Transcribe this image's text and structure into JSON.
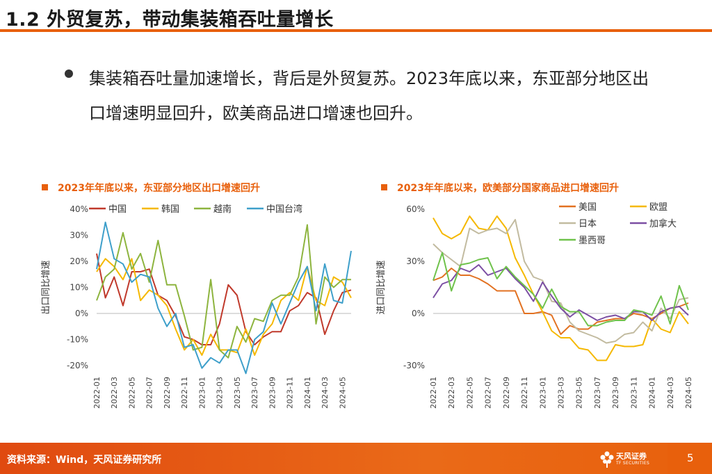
{
  "header": {
    "title": "1.2 外贸复苏，带动集装箱吞吐量增长"
  },
  "body": {
    "bullet_text": "集装箱吞吐量加速增长，背后是外贸复苏。2023年底以来，东亚部分地区出口增速明显回升，欧美商品进口增速也回升。"
  },
  "footer": {
    "source": "资料来源：Wind，天风证券研究所",
    "logo_cn": "天风证券",
    "logo_en": "TF SECURITIES",
    "page_number": "5"
  },
  "colors": {
    "accent": "#e8600c"
  },
  "chart_data": [
    {
      "type": "line",
      "title": "2023年年底以来，东亚部分地区出口增速回升",
      "ylabel": "出口同比增速",
      "ylim": [
        -0.2,
        0.4
      ],
      "yticks": [
        -0.2,
        -0.1,
        0,
        0.1,
        0.2,
        0.3,
        0.4
      ],
      "ytick_labels": [
        "-20%",
        "-10%",
        "0%",
        "10%",
        "20%",
        "30%",
        "40%"
      ],
      "categories": [
        "2022-01",
        "2022-02",
        "2022-03",
        "2022-04",
        "2022-05",
        "2022-06",
        "2022-07",
        "2022-08",
        "2022-09",
        "2022-10",
        "2022-11",
        "2022-12",
        "2023-01",
        "2023-02",
        "2023-03",
        "2023-04",
        "2023-05",
        "2023-06",
        "2023-07",
        "2023-08",
        "2023-09",
        "2023-10",
        "2023-11",
        "2023-12",
        "2024-01",
        "2024-02",
        "2024-03",
        "2024-04",
        "2024-05",
        "2024-06"
      ],
      "xtick_labels": [
        "2022-01",
        "2022-03",
        "2022-05",
        "2022-07",
        "2022-09",
        "2022-11",
        "2023-01",
        "2023-03",
        "2023-05",
        "2023-07",
        "2023-09",
        "2023-11",
        "2024-01",
        "2024-03",
        "2024-05"
      ],
      "series": [
        {
          "name": "中国",
          "color": "#c0392b",
          "values": [
            0.23,
            0.06,
            0.14,
            0.03,
            0.16,
            0.16,
            0.17,
            0.07,
            0.05,
            -0.01,
            -0.09,
            -0.1,
            -0.12,
            -0.12,
            -0.04,
            0.11,
            0.07,
            -0.07,
            -0.12,
            -0.09,
            -0.07,
            -0.07,
            0.01,
            0.03,
            0.08,
            0.06,
            -0.08,
            0.01,
            0.08,
            0.09
          ]
        },
        {
          "name": "韩国",
          "color": "#f5b800",
          "values": [
            0.16,
            0.21,
            0.18,
            0.13,
            0.21,
            0.05,
            0.09,
            0.07,
            0.03,
            -0.06,
            -0.14,
            -0.1,
            -0.16,
            -0.08,
            -0.14,
            -0.14,
            -0.15,
            -0.06,
            -0.16,
            -0.08,
            -0.04,
            0.05,
            0.08,
            0.05,
            0.18,
            0.05,
            0.03,
            0.14,
            0.12,
            0.06
          ]
        },
        {
          "name": "越南",
          "color": "#8db43e",
          "values": [
            0.05,
            0.14,
            0.17,
            0.31,
            0.17,
            0.23,
            0.12,
            0.28,
            0.11,
            0.11,
            -0.01,
            -0.14,
            -0.13,
            0.13,
            -0.14,
            -0.17,
            -0.05,
            -0.11,
            -0.02,
            -0.03,
            0.05,
            0.07,
            0.07,
            0.14,
            0.34,
            -0.04,
            0.14,
            0.1,
            0.13,
            0.13
          ]
        },
        {
          "name": "中国台湾",
          "color": "#3d9fca",
          "values": [
            0.17,
            0.35,
            0.21,
            0.19,
            0.12,
            0.15,
            0.14,
            0.02,
            -0.05,
            0.0,
            -0.13,
            -0.12,
            -0.21,
            -0.17,
            -0.19,
            -0.14,
            -0.14,
            -0.23,
            -0.1,
            -0.07,
            0.04,
            -0.04,
            0.04,
            0.12,
            0.18,
            0.01,
            0.19,
            0.05,
            0.04,
            0.24
          ]
        }
      ]
    },
    {
      "type": "line",
      "title": "2023年年底以来，欧美部分国家商品进口增速回升",
      "ylabel": "进口同比增速",
      "ylim": [
        -0.3,
        0.6
      ],
      "yticks": [
        -0.3,
        0,
        0.3,
        0.6
      ],
      "ytick_labels": [
        "-30%",
        "0%",
        "30%",
        "60%"
      ],
      "categories": [
        "2022-01",
        "2022-02",
        "2022-03",
        "2022-04",
        "2022-05",
        "2022-06",
        "2022-07",
        "2022-08",
        "2022-09",
        "2022-10",
        "2022-11",
        "2022-12",
        "2023-01",
        "2023-02",
        "2023-03",
        "2023-04",
        "2023-05",
        "2023-06",
        "2023-07",
        "2023-08",
        "2023-09",
        "2023-10",
        "2023-11",
        "2023-12",
        "2024-01",
        "2024-02",
        "2024-03",
        "2024-04",
        "2024-05"
      ],
      "xtick_labels": [
        "2022-01",
        "2022-03",
        "2022-05",
        "2022-07",
        "2022-09",
        "2022-11",
        "2023-01",
        "2023-03",
        "2023-05",
        "2023-07",
        "2023-09",
        "2023-11",
        "2024-01",
        "2024-03",
        "2024-05"
      ],
      "series": [
        {
          "name": "美国",
          "color": "#e27121",
          "values": [
            0.19,
            0.21,
            0.26,
            0.22,
            0.22,
            0.2,
            0.17,
            0.13,
            0.13,
            0.13,
            0.0,
            0.0,
            0.01,
            -0.01,
            -0.12,
            -0.07,
            -0.09,
            -0.09,
            -0.05,
            -0.04,
            -0.03,
            -0.03,
            0.0,
            -0.01,
            -0.03,
            0.0,
            0.03,
            0.04,
            0.06
          ]
        },
        {
          "name": "欧盟",
          "color": "#f5b800",
          "values": [
            0.55,
            0.46,
            0.43,
            0.46,
            0.56,
            0.49,
            0.48,
            0.56,
            0.49,
            0.32,
            0.22,
            0.11,
            0.01,
            -0.1,
            -0.14,
            -0.14,
            -0.2,
            -0.21,
            -0.27,
            -0.27,
            -0.18,
            -0.19,
            -0.19,
            -0.18,
            -0.03,
            -0.09,
            -0.11,
            0.01,
            -0.06
          ]
        },
        {
          "name": "日本",
          "color": "#c2bba0",
          "values": [
            0.4,
            0.35,
            0.31,
            0.27,
            0.49,
            0.46,
            0.48,
            0.49,
            0.46,
            0.54,
            0.3,
            0.21,
            0.19,
            0.07,
            0.06,
            -0.05,
            -0.1,
            -0.12,
            -0.14,
            -0.17,
            -0.16,
            -0.12,
            -0.11,
            -0.05,
            -0.1,
            0.03,
            -0.03,
            0.08,
            0.09
          ]
        },
        {
          "name": "加拿大",
          "color": "#7b4ea3",
          "values": [
            0.09,
            0.17,
            0.19,
            0.26,
            0.24,
            0.28,
            0.22,
            0.24,
            0.26,
            0.2,
            0.15,
            0.07,
            0.18,
            0.1,
            0.03,
            -0.02,
            0.02,
            -0.01,
            -0.04,
            -0.02,
            -0.01,
            -0.03,
            0.01,
            0.01,
            -0.04,
            0.01,
            0.03,
            0.04,
            -0.01
          ]
        },
        {
          "name": "墨西哥",
          "color": "#6fc24b",
          "values": [
            0.19,
            0.35,
            0.13,
            0.28,
            0.29,
            0.31,
            0.32,
            0.2,
            0.27,
            0.21,
            0.16,
            0.11,
            0.03,
            0.14,
            0.04,
            0.01,
            0.01,
            -0.07,
            -0.07,
            -0.05,
            -0.04,
            -0.04,
            0.02,
            0.01,
            -0.01,
            0.1,
            -0.06,
            0.16,
            0.02
          ]
        }
      ]
    }
  ]
}
